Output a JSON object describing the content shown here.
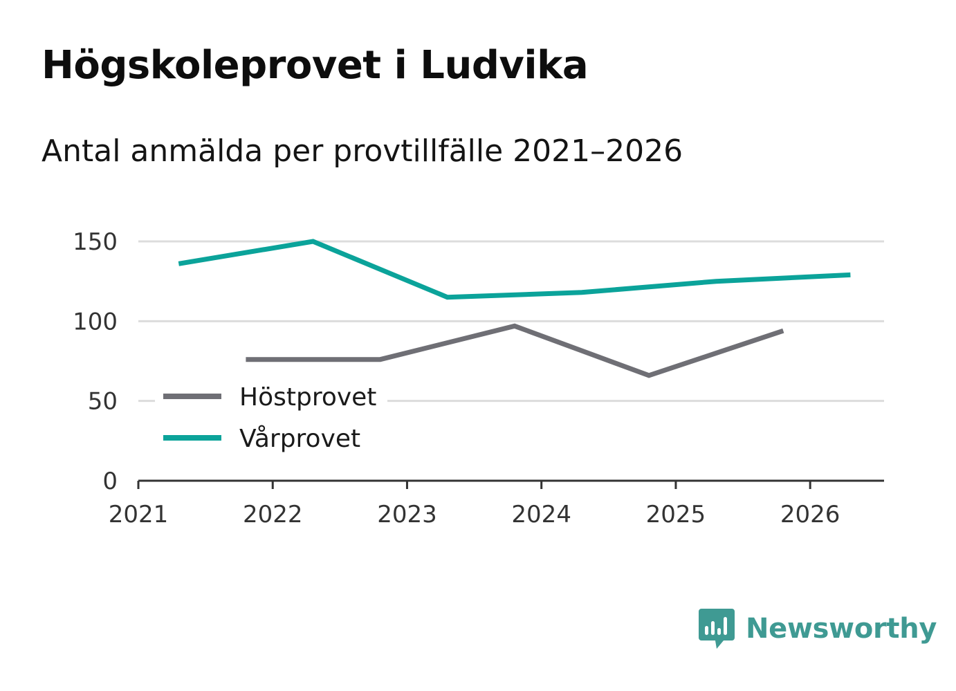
{
  "title": "Högskoleprovet i Ludvika",
  "subtitle": "Antal anmälda per provtillfälle 2021–2026",
  "brand": {
    "name": "Newsworthy",
    "icon": "newsworthy-logo-icon",
    "color": "#3f9a93"
  },
  "chart_data": {
    "type": "line",
    "title": "Högskoleprovet i Ludvika",
    "subtitle": "Antal anmälda per provtillfälle 2021–2026",
    "xlabel": "",
    "ylabel": "",
    "xlim": [
      2021,
      2026.55
    ],
    "ylim": [
      0,
      150
    ],
    "x_ticks": [
      2021,
      2022,
      2023,
      2024,
      2025,
      2026
    ],
    "y_ticks": [
      0,
      50,
      100,
      150
    ],
    "grid": true,
    "legend_position": "bottom-left",
    "series": [
      {
        "name": "Höstprovet",
        "color": "#6f6f75",
        "x": [
          2021.8,
          2022.8,
          2023.8,
          2024.8,
          2025.8
        ],
        "y": [
          76,
          76,
          97,
          66,
          94
        ]
      },
      {
        "name": "Vårprovet",
        "color": "#0ba39a",
        "x": [
          2021.3,
          2022.3,
          2023.3,
          2024.3,
          2025.3,
          2026.3
        ],
        "y": [
          136,
          150,
          115,
          118,
          125,
          129
        ]
      }
    ]
  }
}
